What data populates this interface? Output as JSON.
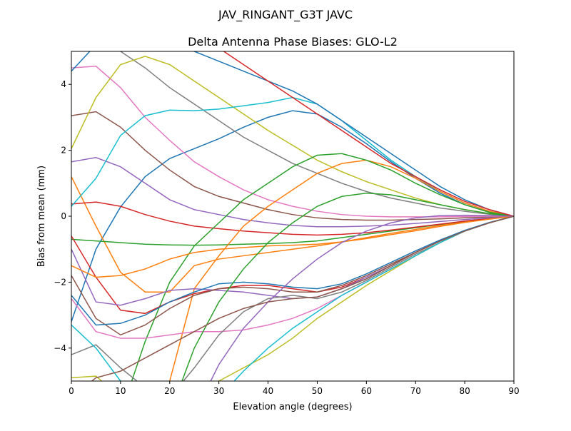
{
  "chart_data": {
    "type": "line",
    "suptitle": "JAV_RINGANT_G3T JAVC",
    "title": "Delta Antenna Phase Biases: GLO-L2",
    "xlabel": "Elevation angle (degrees)",
    "ylabel": "Bias from mean (mm)",
    "xlim": [
      0,
      90
    ],
    "ylim": [
      -5,
      5
    ],
    "xticks": [
      0,
      10,
      20,
      30,
      40,
      50,
      60,
      70,
      80,
      90
    ],
    "yticks": [
      -4,
      -2,
      0,
      2,
      4
    ],
    "grid": false,
    "x": [
      0,
      5,
      10,
      15,
      20,
      25,
      30,
      35,
      40,
      45,
      50,
      55,
      60,
      65,
      70,
      75,
      80,
      85,
      90
    ],
    "colors": [
      "#1f77b4",
      "#ff7f0e",
      "#2ca02c",
      "#d62728",
      "#9467bd",
      "#8c564b",
      "#e377c2",
      "#7f7f7f",
      "#bcbd22",
      "#17becf"
    ],
    "series": [
      {
        "values": [
          -3.2,
          -1.0,
          0.28,
          1.2,
          1.75,
          2.05,
          2.35,
          2.7,
          3.0,
          3.2,
          3.1,
          2.7,
          2.2,
          1.65,
          1.15,
          0.7,
          0.35,
          0.12,
          0
        ]
      },
      {
        "values": [
          1.2,
          -0.3,
          -1.7,
          -2.3,
          -2.3,
          -1.5,
          -1.3,
          -1.2,
          -1.1,
          -1.0,
          -0.9,
          -0.78,
          -0.65,
          -0.52,
          -0.4,
          -0.28,
          -0.17,
          -0.08,
          0
        ]
      },
      {
        "values": [
          -0.7,
          -0.75,
          -0.8,
          -0.85,
          -0.87,
          -0.88,
          -0.87,
          -0.85,
          -0.83,
          -0.8,
          -0.75,
          -0.65,
          -0.55,
          -0.45,
          -0.35,
          -0.25,
          -0.15,
          -0.07,
          0
        ]
      },
      {
        "values": [
          0.37,
          0.43,
          0.3,
          0.05,
          -0.15,
          -0.3,
          -0.38,
          -0.45,
          -0.5,
          -0.55,
          -0.57,
          -0.55,
          -0.5,
          -0.42,
          -0.33,
          -0.24,
          -0.15,
          -0.07,
          0
        ]
      },
      {
        "values": [
          1.65,
          1.78,
          1.5,
          1.0,
          0.5,
          0.2,
          0.05,
          -0.1,
          -0.2,
          -0.28,
          -0.32,
          -0.32,
          -0.3,
          -0.27,
          -0.22,
          -0.16,
          -0.1,
          -0.05,
          0
        ]
      },
      {
        "values": [
          3.05,
          3.17,
          2.7,
          2.0,
          1.4,
          0.9,
          0.6,
          0.4,
          0.2,
          0.05,
          -0.05,
          -0.1,
          -0.12,
          -0.12,
          -0.1,
          -0.08,
          -0.05,
          -0.02,
          0
        ]
      },
      {
        "values": [
          4.5,
          4.55,
          3.9,
          3.0,
          2.3,
          1.65,
          1.2,
          0.8,
          0.5,
          0.3,
          0.15,
          0.05,
          0,
          -0.02,
          -0.02,
          -0.02,
          -0.01,
          0,
          0
        ]
      },
      {
        "values": [
          5.5,
          5.5,
          5.0,
          4.5,
          3.9,
          3.4,
          2.9,
          2.4,
          2.0,
          1.6,
          1.3,
          1.0,
          0.75,
          0.55,
          0.4,
          0.25,
          0.15,
          0.06,
          0
        ]
      },
      {
        "values": [
          2.05,
          3.6,
          4.6,
          4.85,
          4.6,
          4.1,
          3.6,
          3.1,
          2.6,
          2.15,
          1.7,
          1.35,
          1.05,
          0.8,
          0.55,
          0.35,
          0.2,
          0.08,
          0
        ]
      },
      {
        "values": [
          0.3,
          1.15,
          2.45,
          3.05,
          3.22,
          3.2,
          3.25,
          3.35,
          3.45,
          3.6,
          3.4,
          2.9,
          2.3,
          1.7,
          1.2,
          0.75,
          0.4,
          0.15,
          0
        ]
      },
      {
        "values": [
          4.4,
          5.2,
          5.5,
          5.5,
          5.3,
          5.0,
          4.7,
          4.4,
          4.1,
          3.8,
          3.4,
          2.9,
          2.4,
          1.9,
          1.4,
          0.9,
          0.5,
          0.2,
          0
        ]
      },
      {
        "values": [
          -6,
          -6,
          -6,
          -6,
          -5,
          -2.2,
          -1.2,
          -0.3,
          0.3,
          0.8,
          1.3,
          1.6,
          1.7,
          1.5,
          1.15,
          0.75,
          0.4,
          0.15,
          0
        ]
      },
      {
        "values": [
          -6,
          -6,
          -6,
          -3.8,
          -2.0,
          -0.9,
          -0.2,
          0.5,
          1.0,
          1.5,
          1.85,
          1.9,
          1.7,
          1.4,
          1.0,
          0.65,
          0.35,
          0.12,
          0
        ]
      },
      {
        "values": [
          -0.6,
          -1.85,
          -2.85,
          -2.95,
          -2.6,
          -2.35,
          -2.2,
          -2.1,
          -2.1,
          -2.2,
          -2.3,
          -2.15,
          -1.85,
          -1.5,
          -1.1,
          -0.75,
          -0.45,
          -0.2,
          0
        ]
      },
      {
        "values": [
          -1.0,
          -2.6,
          -2.7,
          -2.5,
          -2.25,
          -2.2,
          -2.25,
          -2.3,
          -2.4,
          -2.5,
          -2.45,
          -2.2,
          -1.85,
          -1.5,
          -1.1,
          -0.75,
          -0.45,
          -0.2,
          0
        ]
      },
      {
        "values": [
          -1.8,
          -3.1,
          -3.6,
          -3.3,
          -2.8,
          -2.4,
          -2.2,
          -2.15,
          -2.2,
          -2.3,
          -2.3,
          -2.1,
          -1.8,
          -1.45,
          -1.1,
          -0.75,
          -0.45,
          -0.2,
          0
        ]
      },
      {
        "values": [
          -2.5,
          -3.5,
          -3.7,
          -3.7,
          -3.6,
          -3.5,
          -3.5,
          -3.45,
          -3.3,
          -3.1,
          -2.8,
          -2.4,
          -2.0,
          -1.6,
          -1.2,
          -0.8,
          -0.45,
          -0.2,
          0
        ]
      },
      {
        "values": [
          -4.2,
          -3.9,
          -4.6,
          -5.2,
          -5.5,
          -4.6,
          -3.6,
          -2.9,
          -2.5,
          -2.4,
          -2.5,
          -2.3,
          -1.95,
          -1.55,
          -1.15,
          -0.8,
          -0.45,
          -0.2,
          0
        ]
      },
      {
        "values": [
          -4.9,
          -4.85,
          -5.5,
          -6,
          -5.8,
          -5.4,
          -5.0,
          -4.6,
          -4.2,
          -3.7,
          -3.1,
          -2.6,
          -2.1,
          -1.65,
          -1.2,
          -0.8,
          -0.45,
          -0.2,
          0
        ]
      },
      {
        "values": [
          -3.3,
          -4.0,
          -5,
          -6,
          -6,
          -6,
          -5.5,
          -4.7,
          -4.0,
          -3.4,
          -2.9,
          -2.4,
          -2.0,
          -1.6,
          -1.2,
          -0.8,
          -0.45,
          -0.2,
          0
        ]
      },
      {
        "values": [
          -2.4,
          -3.3,
          -3.25,
          -3.0,
          -2.6,
          -2.3,
          -2.05,
          -2.0,
          -2.05,
          -2.15,
          -2.2,
          -2.05,
          -1.75,
          -1.4,
          -1.05,
          -0.72,
          -0.43,
          -0.19,
          0
        ]
      },
      {
        "values": [
          -1.5,
          -1.85,
          -1.8,
          -1.6,
          -1.3,
          -1.1,
          -1.0,
          -0.95,
          -0.9,
          -0.88,
          -0.85,
          -0.78,
          -0.68,
          -0.56,
          -0.44,
          -0.31,
          -0.19,
          -0.09,
          0
        ]
      },
      {
        "values": [
          -6,
          -6,
          -6,
          -6,
          -6,
          -4.0,
          -2.6,
          -1.6,
          -0.8,
          -0.2,
          0.3,
          0.6,
          0.7,
          0.65,
          0.5,
          0.35,
          0.2,
          0.08,
          0
        ]
      },
      {
        "values": [
          5.5,
          6,
          6,
          6,
          6,
          5.6,
          5.1,
          4.6,
          4.1,
          3.6,
          3.1,
          2.6,
          2.1,
          1.6,
          1.2,
          0.8,
          0.45,
          0.2,
          0
        ]
      },
      {
        "values": [
          -6,
          -6,
          -6,
          -6,
          -6,
          -6,
          -4.5,
          -3.4,
          -2.6,
          -1.9,
          -1.3,
          -0.8,
          -0.45,
          -0.2,
          -0.05,
          0.02,
          0.03,
          0.02,
          0
        ]
      },
      {
        "values": [
          -5.5,
          -4.9,
          -4.7,
          -4.3,
          -3.9,
          -3.5,
          -3.1,
          -2.8,
          -2.6,
          -2.5,
          -2.45,
          -2.2,
          -1.9,
          -1.5,
          -1.1,
          -0.75,
          -0.45,
          -0.2,
          0
        ]
      }
    ]
  }
}
